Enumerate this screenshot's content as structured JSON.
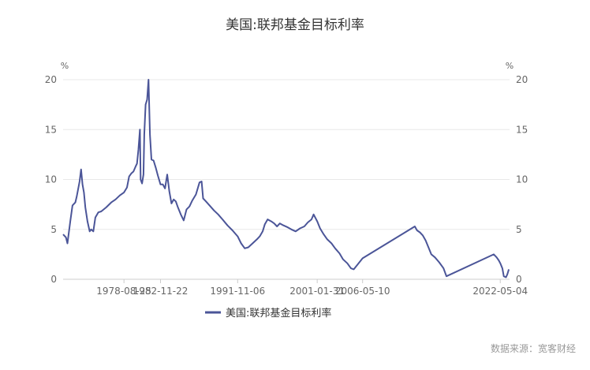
{
  "source_note": "数据来源：宽客财经",
  "colors": {
    "line": "#4B5598",
    "grid": "#E8E8E8",
    "text": "#666666"
  },
  "chart_data": {
    "type": "line",
    "title": "美国:联邦基金目标利率",
    "ylabel_left_unit": "%",
    "ylabel_right_unit": "%",
    "ylim": [
      0,
      20
    ],
    "yticks": [
      0,
      5,
      10,
      15,
      20
    ],
    "grid": true,
    "legend_position": "bottom",
    "xlim": [
      "1971-08-01",
      "2023-06-01"
    ],
    "x_tick_labels": [
      "1978-08-25",
      "1982-11-22",
      "1991-11-06",
      "2001-01-31",
      "2006-05-10",
      "2022-05-04"
    ],
    "series": [
      {
        "name": "美国:联邦基金目标利率",
        "color": "#4B5598",
        "points": [
          [
            "1971-08-01",
            4.5
          ],
          [
            "1971-12-01",
            4.2
          ],
          [
            "1972-02-01",
            3.6
          ],
          [
            "1972-06-01",
            5.8
          ],
          [
            "1972-09-01",
            7.4
          ],
          [
            "1973-01-01",
            7.7
          ],
          [
            "1973-03-01",
            8.3
          ],
          [
            "1973-07-01",
            9.8
          ],
          [
            "1973-09-01",
            11.0
          ],
          [
            "1973-11-01",
            9.5
          ],
          [
            "1974-01-01",
            8.7
          ],
          [
            "1974-03-01",
            7.2
          ],
          [
            "1974-06-01",
            5.8
          ],
          [
            "1974-09-01",
            4.8
          ],
          [
            "1974-11-01",
            5.0
          ],
          [
            "1975-02-01",
            4.8
          ],
          [
            "1975-05-01",
            6.2
          ],
          [
            "1975-09-01",
            6.7
          ],
          [
            "1976-01-01",
            6.8
          ],
          [
            "1976-08-01",
            7.2
          ],
          [
            "1977-03-01",
            7.7
          ],
          [
            "1977-09-01",
            8.0
          ],
          [
            "1978-03-01",
            8.4
          ],
          [
            "1978-08-25",
            8.7
          ],
          [
            "1979-01-01",
            9.2
          ],
          [
            "1979-04-01",
            10.3
          ],
          [
            "1979-07-01",
            10.6
          ],
          [
            "1979-10-01",
            10.8
          ],
          [
            "1980-01-01",
            11.3
          ],
          [
            "1980-03-01",
            11.6
          ],
          [
            "1980-05-01",
            13.0
          ],
          [
            "1980-07-01",
            15.0
          ],
          [
            "1980-08-01",
            10.0
          ],
          [
            "1980-10-01",
            9.6
          ],
          [
            "1980-12-01",
            10.5
          ],
          [
            "1981-01-01",
            14.5
          ],
          [
            "1981-03-01",
            17.5
          ],
          [
            "1981-05-01",
            18.0
          ],
          [
            "1981-07-01",
            20.0
          ],
          [
            "1981-09-01",
            14.5
          ],
          [
            "1981-11-01",
            12.0
          ],
          [
            "1982-02-01",
            11.9
          ],
          [
            "1982-05-01",
            11.2
          ],
          [
            "1982-08-01",
            10.4
          ],
          [
            "1982-11-22",
            9.5
          ],
          [
            "1983-03-01",
            9.5
          ],
          [
            "1983-06-01",
            9.1
          ],
          [
            "1983-09-01",
            10.5
          ],
          [
            "1983-12-01",
            8.8
          ],
          [
            "1984-03-01",
            7.6
          ],
          [
            "1984-06-01",
            8.0
          ],
          [
            "1984-09-01",
            7.8
          ],
          [
            "1984-12-01",
            7.2
          ],
          [
            "1985-04-01",
            6.5
          ],
          [
            "1985-08-01",
            5.9
          ],
          [
            "1985-12-01",
            7.0
          ],
          [
            "1986-04-01",
            7.3
          ],
          [
            "1986-08-01",
            7.9
          ],
          [
            "1987-01-01",
            8.5
          ],
          [
            "1987-06-01",
            9.7
          ],
          [
            "1987-09-01",
            9.8
          ],
          [
            "1987-11-01",
            8.1
          ],
          [
            "1988-03-01",
            7.8
          ],
          [
            "1988-08-01",
            7.4
          ],
          [
            "1989-02-01",
            6.9
          ],
          [
            "1989-08-01",
            6.5
          ],
          [
            "1990-02-01",
            6.0
          ],
          [
            "1990-09-01",
            5.4
          ],
          [
            "1991-04-01",
            4.9
          ],
          [
            "1991-11-06",
            4.3
          ],
          [
            "1992-04-01",
            3.6
          ],
          [
            "1992-09-01",
            3.1
          ],
          [
            "1993-02-01",
            3.2
          ],
          [
            "1993-08-01",
            3.6
          ],
          [
            "1994-02-01",
            4.0
          ],
          [
            "1994-06-01",
            4.3
          ],
          [
            "1994-10-01",
            4.8
          ],
          [
            "1995-01-01",
            5.5
          ],
          [
            "1995-05-01",
            6.0
          ],
          [
            "1995-10-01",
            5.8
          ],
          [
            "1996-02-01",
            5.6
          ],
          [
            "1996-06-01",
            5.3
          ],
          [
            "1996-10-01",
            5.6
          ],
          [
            "1997-03-01",
            5.4
          ],
          [
            "1997-09-01",
            5.2
          ],
          [
            "1998-02-01",
            5.0
          ],
          [
            "1998-08-01",
            4.8
          ],
          [
            "1999-02-01",
            5.1
          ],
          [
            "1999-08-01",
            5.3
          ],
          [
            "2000-01-01",
            5.7
          ],
          [
            "2000-06-01",
            6.0
          ],
          [
            "2000-09-01",
            6.5
          ],
          [
            "2001-01-31",
            5.8
          ],
          [
            "2001-06-01",
            5.1
          ],
          [
            "2001-11-01",
            4.5
          ],
          [
            "2002-04-01",
            4.0
          ],
          [
            "2002-10-01",
            3.6
          ],
          [
            "2003-03-01",
            3.1
          ],
          [
            "2003-09-01",
            2.6
          ],
          [
            "2004-02-01",
            2.0
          ],
          [
            "2004-08-01",
            1.6
          ],
          [
            "2005-01-01",
            1.1
          ],
          [
            "2005-05-01",
            1.0
          ],
          [
            "2006-05-10",
            2.1
          ],
          [
            "2012-06-01",
            5.3
          ],
          [
            "2012-09-01",
            4.9
          ],
          [
            "2013-01-01",
            4.7
          ],
          [
            "2013-05-01",
            4.4
          ],
          [
            "2013-09-01",
            3.9
          ],
          [
            "2014-01-01",
            3.2
          ],
          [
            "2014-05-01",
            2.5
          ],
          [
            "2014-10-01",
            2.2
          ],
          [
            "2015-04-01",
            1.7
          ],
          [
            "2015-10-01",
            1.1
          ],
          [
            "2016-02-01",
            0.3
          ],
          [
            "2021-08-01",
            2.5
          ],
          [
            "2021-12-01",
            2.2
          ],
          [
            "2022-03-01",
            1.9
          ],
          [
            "2022-05-04",
            1.6
          ],
          [
            "2022-08-01",
            1.1
          ],
          [
            "2022-10-01",
            0.3
          ],
          [
            "2023-01-01",
            0.2
          ],
          [
            "2023-03-01",
            0.5
          ],
          [
            "2023-05-01",
            1.0
          ]
        ]
      }
    ]
  }
}
